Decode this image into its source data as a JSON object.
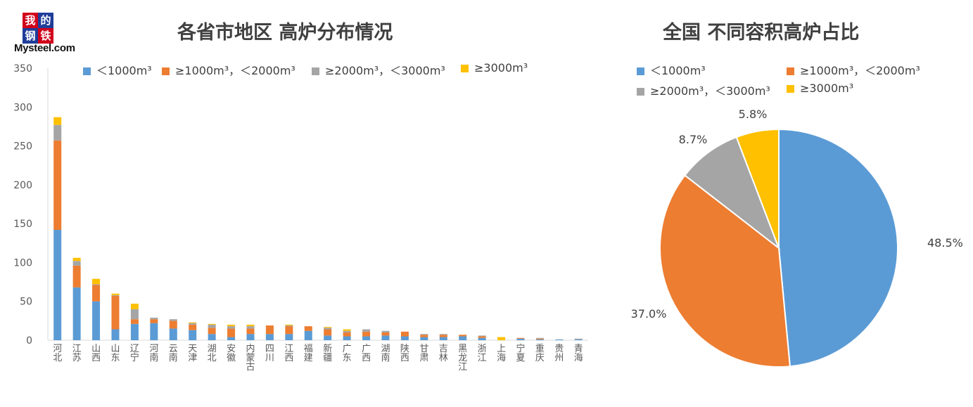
{
  "logo": {
    "chars": [
      "我",
      "的",
      "钢",
      "铁"
    ],
    "brand": "Mysteel.com"
  },
  "bar_title": "各省市地区 高炉分布情况",
  "pie_title": "全国 不同容积高炉占比",
  "series_names": [
    "＜1000m³",
    "≥1000m³，＜2000m³",
    "≥2000m³，＜3000m³",
    "≥3000m³"
  ],
  "colors": [
    "#5b9bd5",
    "#ed7d31",
    "#a5a5a5",
    "#ffc000"
  ],
  "chart_data": [
    {
      "type": "bar",
      "stacked": true,
      "title": "各省市地区 高炉分布情况",
      "ylim": [
        0,
        350
      ],
      "yticks": [
        0,
        50,
        100,
        150,
        200,
        250,
        300,
        350
      ],
      "legend": "top",
      "categories": [
        "河北",
        "江苏",
        "山西",
        "山东",
        "辽宁",
        "河南",
        "云南",
        "天津",
        "湖北",
        "安徽",
        "内蒙古",
        "四川",
        "江西",
        "福建",
        "新疆",
        "广东",
        "广西",
        "湖南",
        "陕西",
        "甘肃",
        "吉林",
        "黑龙江",
        "浙江",
        "上海",
        "宁夏",
        "重庆",
        "贵州",
        "青海"
      ],
      "series": [
        {
          "name": "＜1000m³",
          "values": [
            142,
            68,
            50,
            14,
            21,
            22,
            15,
            13,
            8,
            4,
            8,
            8,
            8,
            12,
            6,
            5,
            5,
            6,
            5,
            4,
            4,
            5,
            3,
            0,
            2,
            1,
            1,
            1
          ]
        },
        {
          "name": "≥1000m³，＜2000m³",
          "values": [
            115,
            28,
            21,
            43,
            6,
            5,
            10,
            7,
            8,
            11,
            7,
            11,
            10,
            6,
            8,
            5,
            6,
            4,
            6,
            3,
            3,
            2,
            2,
            0,
            1,
            1,
            0,
            0
          ]
        },
        {
          "name": "≥2000m³，＜3000m³",
          "values": [
            20,
            6,
            1,
            1,
            13,
            2,
            2,
            2,
            4,
            3,
            3,
            0,
            1,
            0,
            2,
            2,
            3,
            2,
            0,
            1,
            1,
            0,
            1,
            0,
            0,
            1,
            0,
            1
          ]
        },
        {
          "name": "≥3000m³",
          "values": [
            10,
            4,
            7,
            2,
            7,
            0,
            0,
            1,
            1,
            2,
            2,
            0,
            1,
            0,
            1,
            2,
            0,
            0,
            0,
            0,
            0,
            0,
            0,
            4,
            0,
            0,
            0,
            0
          ]
        }
      ]
    },
    {
      "type": "pie",
      "title": "全国 不同容积高炉占比",
      "legend": "top",
      "labels": [
        "＜1000m³",
        "≥1000m³，＜2000m³",
        "≥2000m³，＜3000m³",
        "≥3000m³"
      ],
      "values": [
        48.5,
        37.0,
        8.7,
        5.8
      ],
      "value_labels": [
        "48.5%",
        "37.0%",
        "8.7%",
        "5.8%"
      ]
    }
  ]
}
